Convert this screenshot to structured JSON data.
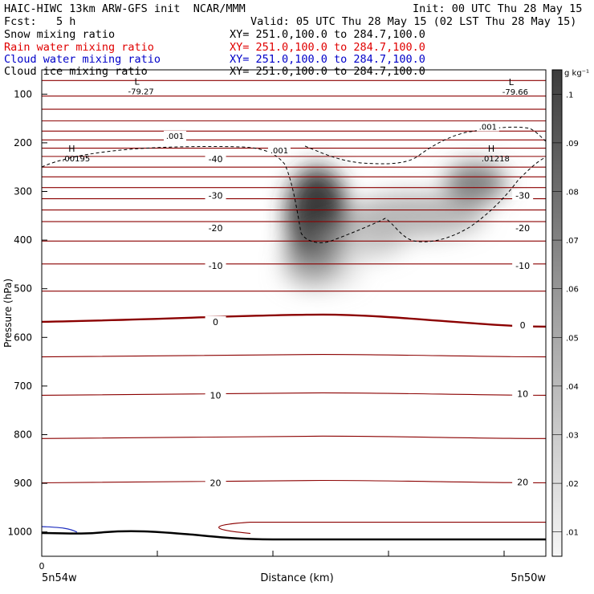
{
  "header": {
    "line1_left": "HAIC-HIWC 13km ARW-GFS init  NCAR/MMM",
    "line1_right": "Init: 00 UTC Thu 28 May 15",
    "line2_left": "Fcst:   5 h",
    "line2_right": "Valid: 05 UTC Thu 28 May 15 (02 LST Thu 28 May 15)",
    "fields": [
      {
        "label": "Snow mixing ratio",
        "xy": "XY= 251.0,100.0 to 284.7,100.0",
        "color": "#000000"
      },
      {
        "label": "Rain water mixing ratio",
        "xy": "XY= 251.0,100.0 to 284.7,100.0",
        "color": "#e00000"
      },
      {
        "label": "Cloud water mixing ratio",
        "xy": "XY= 251.0,100.0 to 284.7,100.0",
        "color": "#0000c8"
      },
      {
        "label": "Cloud ice mixing ratio",
        "xy": "XY= 251.0,100.0 to 284.7,100.0",
        "color": "#000000"
      }
    ]
  },
  "chart_data": {
    "type": "contour",
    "ylabel": "Pressure (hPa)",
    "xlabel": "Distance (km)",
    "x_start_label": "5n54w",
    "x_end_label": "5n50w",
    "x_zero_label": "0",
    "y_ticks": [
      100,
      200,
      300,
      400,
      500,
      600,
      700,
      800,
      900,
      1000
    ],
    "ylim": [
      1050,
      50
    ],
    "xlim": [
      0,
      435
    ],
    "temperature_isotherms": {
      "color": "#8b0000",
      "left_labels": [
        {
          "value": "-40",
          "p": 233
        },
        {
          "value": "-30",
          "p": 308
        },
        {
          "value": "-20",
          "p": 375
        },
        {
          "value": "-10",
          "p": 453
        },
        {
          "value": "0",
          "p": 568
        },
        {
          "value": "10",
          "p": 719
        },
        {
          "value": "20",
          "p": 899
        }
      ],
      "right_labels": [
        {
          "value": "-30",
          "p": 308
        },
        {
          "value": "-20",
          "p": 375
        },
        {
          "value": "-10",
          "p": 453
        },
        {
          "value": "0",
          "p": 575
        },
        {
          "value": "10",
          "p": 716
        },
        {
          "value": "20",
          "p": 897
        }
      ],
      "levels_p": [
        72,
        104,
        131,
        155,
        176,
        194,
        211,
        228,
        250,
        270,
        292,
        315,
        338,
        362,
        402,
        449,
        505,
        568,
        640,
        719,
        808,
        899
      ]
    },
    "cloud_ice_contour_labels": [
      ".001",
      ".001",
      ".001"
    ],
    "extrema": [
      {
        "type": "L",
        "value": "-79.27"
      },
      {
        "type": "L",
        "value": "-79.66"
      },
      {
        "type": "H",
        "value": ".00195"
      },
      {
        "type": "H",
        "value": ".01218"
      }
    ],
    "colorbar": {
      "unit": "g kg⁻¹",
      "ticks": [
        ".1",
        ".09",
        ".08",
        ".07",
        ".06",
        ".05",
        ".04",
        ".03",
        ".02",
        ".01"
      ],
      "range": [
        0.005,
        0.105
      ]
    }
  }
}
